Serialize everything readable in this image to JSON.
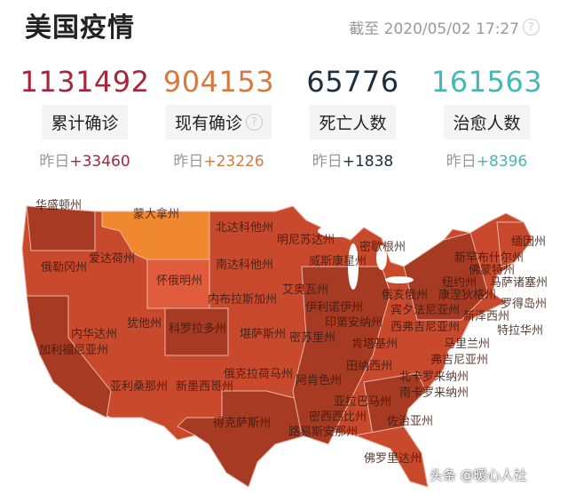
{
  "header": {
    "title": "美国疫情",
    "as_of": "截至 2020/05/02 17:27",
    "help_icon": "question-circle-icon"
  },
  "stats": [
    {
      "value": "1131492",
      "label": "累计确诊",
      "yesterday_label": "昨日",
      "delta": "+33460",
      "color": "#a8243a"
    },
    {
      "value": "904153",
      "label": "现有确诊",
      "yesterday_label": "昨日",
      "delta": "+23226",
      "color": "#d8783a",
      "help": true
    },
    {
      "value": "65776",
      "label": "死亡人数",
      "yesterday_label": "昨日",
      "delta": "+1838",
      "color": "#1e2e3c"
    },
    {
      "value": "161563",
      "label": "治愈人数",
      "yesterday_label": "昨日",
      "delta": "+8396",
      "color": "#45b8b6"
    }
  ],
  "map": {
    "colors": {
      "high": "#a63a22",
      "mid": "#c9492c",
      "low": "#e05c3c",
      "lowest": "#f0882f"
    },
    "states": [
      "华盛顿州",
      "蒙大拿州",
      "北达科他州",
      "明尼苏达州",
      "威斯康星州",
      "密歇根州",
      "缅因州",
      "新罕布什尔州",
      "佛蒙特州",
      "马萨诸塞州",
      "纽约州",
      "俄勒冈州",
      "爱达荷州",
      "怀俄明州",
      "南达科他州",
      "康涅狄格州",
      "罗得岛州",
      "内布拉斯加州",
      "艾奥瓦州",
      "伊利诺伊州",
      "俄亥俄州",
      "宾夕法尼亚州",
      "新泽西州",
      "印第安纳州",
      "内华达州",
      "犹他州",
      "科罗拉多州",
      "堪萨斯州",
      "密苏里州",
      "西弗吉尼亚州",
      "特拉华州",
      "加利福尼亚州",
      "肯塔基州",
      "马里兰州",
      "弗吉尼亚州",
      "田纳西州",
      "北卡罗来纳州",
      "亚利桑那州",
      "新墨西哥州",
      "俄克拉荷马州",
      "阿肯色州",
      "南卡罗来纳州",
      "密西西比州",
      "亚拉巴马州",
      "佐治亚州",
      "得克萨斯州",
      "路易斯安那州",
      "佛罗里达州"
    ]
  },
  "watermark": "头条 @暖心人社"
}
